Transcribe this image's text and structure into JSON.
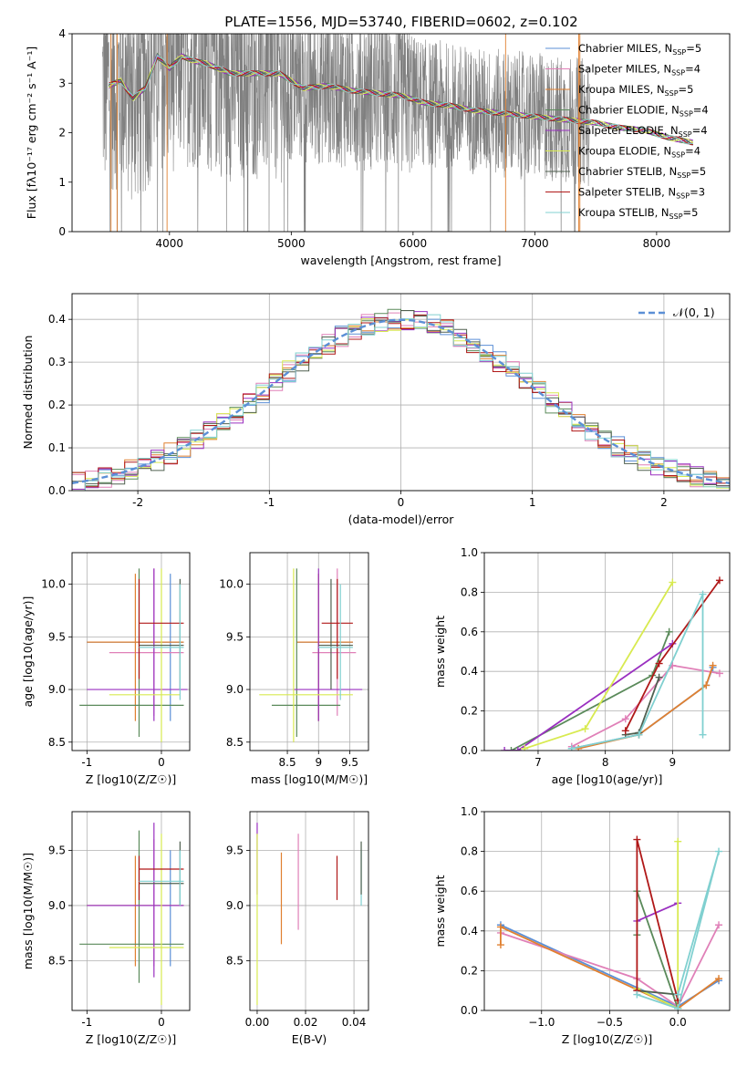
{
  "title": "PLATE=1556, MJD=53740, FIBERID=0602, z=0.102",
  "colors": {
    "Chabrier MILES": "#5b8fd6",
    "Salpeter MILES": "#e080b8",
    "Kroupa MILES": "#e08030",
    "Chabrier ELODIE": "#5a8a5a",
    "Salpeter ELODIE": "#9a30c0",
    "Kroupa ELODIE": "#d8ea50",
    "Chabrier STELIB": "#506050",
    "Salpeter STELIB": "#b01818",
    "Kroupa STELIB": "#80d0d0",
    "data": "#808080",
    "gauss": "#5b8fd6"
  },
  "chart_data": [
    {
      "id": "spectrum",
      "type": "line",
      "xlabel": "wavelength [Angstrom, rest frame]",
      "ylabel": "Flux [fλ10⁻¹⁷ erg cm⁻² s⁻¹ A⁻¹]",
      "xlim": [
        3200,
        8600
      ],
      "ylim": [
        0,
        4
      ],
      "xticks": [
        4000,
        5000,
        6000,
        7000,
        8000
      ],
      "yticks": [
        0,
        1,
        2,
        3,
        4
      ],
      "legend_position": "upper right",
      "legend": [
        {
          "label": "Chabrier MILES, N_SSP=5",
          "name": "Chabrier MILES",
          "nssp": "5"
        },
        {
          "label": "Salpeter MILES, N_SSP=4",
          "name": "Salpeter MILES",
          "nssp": "4"
        },
        {
          "label": "Kroupa MILES, N_SSP=5",
          "name": "Kroupa MILES",
          "nssp": "5"
        },
        {
          "label": "Chabrier ELODIE, N_SSP=4",
          "name": "Chabrier ELODIE",
          "nssp": "4"
        },
        {
          "label": "Salpeter ELODIE, N_SSP=4",
          "name": "Salpeter ELODIE",
          "nssp": "4"
        },
        {
          "label": "Kroupa ELODIE, N_SSP=4",
          "name": "Kroupa ELODIE",
          "nssp": "4"
        },
        {
          "label": "Chabrier STELIB, N_SSP=5",
          "name": "Chabrier STELIB",
          "nssp": "5"
        },
        {
          "label": "Salpeter STELIB, N_SSP=3",
          "name": "Salpeter STELIB",
          "nssp": "3"
        },
        {
          "label": "Kroupa STELIB, N_SSP=5",
          "name": "Kroupa STELIB",
          "nssp": "5"
        }
      ],
      "model_continuum": {
        "x": [
          3500,
          3600,
          3700,
          3800,
          3900,
          4000,
          4100,
          4200,
          4300,
          4400,
          4500,
          4700,
          4900,
          5100,
          5300,
          5500,
          5700,
          5900,
          6100,
          6300,
          6500,
          6700,
          6900,
          7100,
          7300,
          7500,
          7700,
          7900,
          8100,
          8300
        ],
        "y": [
          2.95,
          3.05,
          2.7,
          2.9,
          3.55,
          3.3,
          3.55,
          3.45,
          3.4,
          3.3,
          3.2,
          3.2,
          3.2,
          2.9,
          2.95,
          2.85,
          2.8,
          2.75,
          2.6,
          2.55,
          2.45,
          2.4,
          2.35,
          2.3,
          2.25,
          2.2,
          2.1,
          2.05,
          1.9,
          1.8
        ]
      },
      "data_range": [
        3450,
        7450
      ]
    },
    {
      "id": "residuals",
      "type": "line",
      "xlabel": "(data-model)/error",
      "ylabel": "Normed distribution",
      "xlim": [
        -2.5,
        2.5
      ],
      "ylim": [
        0,
        0.46
      ],
      "xticks": [
        -2,
        -1,
        0,
        1,
        2
      ],
      "yticks": [
        0.0,
        0.1,
        0.2,
        0.3,
        0.4
      ],
      "gauss_label": "𝒩(0, 1)",
      "legend_position": "upper right",
      "bin_width": 0.1
    },
    {
      "id": "age_vs_Z",
      "type": "scatter",
      "xlabel": "Z [log10(Z/Z☉)]",
      "ylabel": "age  [log10(age/yr)]",
      "xlim": [
        -1.2,
        0.38
      ],
      "ylim": [
        8.42,
        10.3
      ],
      "xticks": [
        -1,
        0
      ],
      "yticks": [
        8.5,
        9.0,
        9.5,
        10.0
      ],
      "points": [
        {
          "s": "Chabrier MILES",
          "x": 0.12,
          "y": 9.45,
          "xl": -1.0,
          "xh": 0.3,
          "yl": 8.7,
          "yh": 10.1
        },
        {
          "s": "Salpeter MILES",
          "x": -0.1,
          "y": 9.35,
          "xl": -0.7,
          "xh": 0.3,
          "yl": 8.75,
          "yh": 10.15
        },
        {
          "s": "Kroupa MILES",
          "x": -0.35,
          "y": 9.45,
          "xl": -1.0,
          "xh": 0.3,
          "yl": 8.7,
          "yh": 10.1
        },
        {
          "s": "Chabrier ELODIE",
          "x": -0.3,
          "y": 8.85,
          "xl": -1.1,
          "xh": 0.3,
          "yl": 8.55,
          "yh": 10.15
        },
        {
          "s": "Salpeter ELODIE",
          "x": -0.1,
          "y": 9.0,
          "xl": -1.0,
          "xh": 0.35,
          "yl": 8.7,
          "yh": 10.15
        },
        {
          "s": "Kroupa ELODIE",
          "x": 0.0,
          "y": 8.95,
          "xl": -0.7,
          "xh": 0.25,
          "yl": 8.5,
          "yh": 10.15
        },
        {
          "s": "Chabrier STELIB",
          "x": 0.25,
          "y": 9.42,
          "xl": -0.3,
          "xh": 0.3,
          "yl": 9.0,
          "yh": 10.05
        },
        {
          "s": "Salpeter STELIB",
          "x": -0.3,
          "y": 9.63,
          "xl": -0.3,
          "xh": 0.3,
          "yl": 9.1,
          "yh": 10.05
        },
        {
          "s": "Kroupa STELIB",
          "x": 0.25,
          "y": 9.4,
          "xl": -0.3,
          "xh": 0.3,
          "yl": 8.9,
          "yh": 10.0
        }
      ]
    },
    {
      "id": "age_vs_mass",
      "type": "scatter",
      "xlabel": "mass [log10(M/M☉)]",
      "ylabel": "",
      "xlim": [
        7.9,
        9.8
      ],
      "ylim": [
        8.42,
        10.3
      ],
      "xticks": [
        8.5,
        9.0,
        9.5
      ],
      "yticks": [
        8.5,
        9.0,
        9.5,
        10.0
      ],
      "points": [
        {
          "s": "Chabrier MILES",
          "x": 9.0,
          "y": 9.45,
          "xl": 8.65,
          "xh": 9.55,
          "yl": 8.7,
          "yh": 10.1
        },
        {
          "s": "Salpeter MILES",
          "x": 9.3,
          "y": 9.35,
          "xl": 8.9,
          "xh": 9.6,
          "yl": 8.75,
          "yh": 10.15
        },
        {
          "s": "Kroupa MILES",
          "x": 9.0,
          "y": 9.45,
          "xl": 8.65,
          "xh": 9.55,
          "yl": 8.7,
          "yh": 10.1
        },
        {
          "s": "Chabrier ELODIE",
          "x": 8.65,
          "y": 8.85,
          "xl": 8.25,
          "xh": 9.35,
          "yl": 8.55,
          "yh": 10.15
        },
        {
          "s": "Salpeter ELODIE",
          "x": 9.0,
          "y": 9.0,
          "xl": 8.6,
          "xh": 9.7,
          "yl": 8.7,
          "yh": 10.15
        },
        {
          "s": "Kroupa ELODIE",
          "x": 8.6,
          "y": 8.95,
          "xl": 8.05,
          "xh": 9.55,
          "yl": 8.5,
          "yh": 10.15
        },
        {
          "s": "Chabrier STELIB",
          "x": 9.2,
          "y": 9.42,
          "xl": 9.0,
          "xh": 9.55,
          "yl": 9.0,
          "yh": 10.05
        },
        {
          "s": "Salpeter STELIB",
          "x": 9.3,
          "y": 9.63,
          "xl": 9.05,
          "xh": 9.55,
          "yl": 9.1,
          "yh": 10.05
        },
        {
          "s": "Kroupa STELIB",
          "x": 9.35,
          "y": 9.4,
          "xl": 9.0,
          "xh": 9.55,
          "yl": 8.9,
          "yh": 10.0
        }
      ]
    },
    {
      "id": "weight_vs_age",
      "type": "line",
      "xlabel": "age  [log10(age/yr)]",
      "ylabel": "mass weight",
      "xlim": [
        6.2,
        9.85
      ],
      "ylim": [
        0,
        1
      ],
      "xticks": [
        7,
        8,
        9
      ],
      "yticks": [
        0.0,
        0.2,
        0.4,
        0.6,
        0.8,
        1.0
      ],
      "series": [
        {
          "s": "Chabrier MILES",
          "x": [
            7.5,
            8.5,
            9.5,
            9.6
          ],
          "y": [
            0.01,
            0.08,
            0.33,
            0.42
          ]
        },
        {
          "s": "Salpeter MILES",
          "x": [
            7.5,
            8.3,
            9.0,
            9.7
          ],
          "y": [
            0.02,
            0.16,
            0.43,
            0.39
          ]
        },
        {
          "s": "Kroupa MILES",
          "x": [
            7.6,
            8.5,
            9.5,
            9.6
          ],
          "y": [
            0.01,
            0.08,
            0.33,
            0.43
          ]
        },
        {
          "s": "Chabrier ELODIE",
          "x": [
            6.6,
            8.7,
            8.95
          ],
          "y": [
            0.0,
            0.38,
            0.6
          ]
        },
        {
          "s": "Salpeter ELODIE",
          "x": [
            6.5,
            6.7,
            9.0
          ],
          "y": [
            0.0,
            0.0,
            0.54
          ]
        },
        {
          "s": "Kroupa ELODIE",
          "x": [
            6.8,
            7.7,
            9.0
          ],
          "y": [
            0.01,
            0.11,
            0.85
          ]
        },
        {
          "s": "Chabrier STELIB",
          "x": [
            8.3,
            8.5,
            8.8
          ],
          "y": [
            0.08,
            0.09,
            0.37
          ]
        },
        {
          "s": "Salpeter STELIB",
          "x": [
            8.3,
            8.8,
            9.7
          ],
          "y": [
            0.1,
            0.44,
            0.86
          ]
        },
        {
          "s": "Kroupa STELIB",
          "x": [
            7.5,
            8.5,
            9.45,
            9.45
          ],
          "y": [
            0.01,
            0.08,
            0.79,
            0.08
          ]
        }
      ]
    },
    {
      "id": "mass_vs_Z",
      "type": "scatter",
      "xlabel": "Z [log10(Z/Z☉)]",
      "ylabel": "mass [log10(M/M☉)]",
      "xlim": [
        -1.2,
        0.38
      ],
      "ylim": [
        8.05,
        9.85
      ],
      "xticks": [
        -1,
        0
      ],
      "yticks": [
        8.5,
        9.0,
        9.5
      ],
      "points": [
        {
          "s": "Chabrier MILES",
          "x": 0.12,
          "y": 9.0,
          "xl": -1.0,
          "xh": 0.3,
          "yl": 8.45,
          "yh": 9.5
        },
        {
          "s": "Salpeter MILES",
          "x": -0.1,
          "y": 9.0,
          "xl": -1.0,
          "xh": 0.3,
          "yl": 8.45,
          "yh": 9.6
        },
        {
          "s": "Kroupa MILES",
          "x": -0.35,
          "y": 9.0,
          "xl": -1.0,
          "xh": 0.3,
          "yl": 8.45,
          "yh": 9.45
        },
        {
          "s": "Chabrier ELODIE",
          "x": -0.3,
          "y": 8.65,
          "xl": -1.1,
          "xh": 0.3,
          "yl": 8.3,
          "yh": 9.68
        },
        {
          "s": "Salpeter ELODIE",
          "x": -0.1,
          "y": 9.0,
          "xl": -1.0,
          "xh": 0.3,
          "yl": 8.35,
          "yh": 9.75
        },
        {
          "s": "Kroupa ELODIE",
          "x": 0.0,
          "y": 8.62,
          "xl": -0.7,
          "xh": 0.3,
          "yl": 8.1,
          "yh": 9.65
        },
        {
          "s": "Chabrier STELIB",
          "x": 0.25,
          "y": 9.2,
          "xl": -0.3,
          "xh": 0.3,
          "yl": 9.0,
          "yh": 9.58
        },
        {
          "s": "Salpeter STELIB",
          "x": -0.3,
          "y": 9.33,
          "xl": -0.3,
          "xh": 0.3,
          "yl": 9.05,
          "yh": 9.45
        },
        {
          "s": "Kroupa STELIB",
          "x": 0.25,
          "y": 9.22,
          "xl": -0.3,
          "xh": 0.3,
          "yl": 9.0,
          "yh": 9.5
        }
      ]
    },
    {
      "id": "mass_vs_ebv",
      "type": "scatter",
      "xlabel": "E(B-V)",
      "ylabel": "",
      "xlim": [
        -0.003,
        0.046
      ],
      "ylim": [
        8.05,
        9.85
      ],
      "xticks": [
        0.0,
        0.02,
        0.04
      ],
      "ytick_values": [
        8.5,
        9.0,
        9.5
      ],
      "points": [
        {
          "s": "Salpeter ELODIE",
          "x": 0.0,
          "yl": 9.1,
          "yh": 9.75
        },
        {
          "s": "Kroupa ELODIE",
          "x": 0.0,
          "yl": 8.1,
          "yh": 9.65
        },
        {
          "s": "Kroupa MILES",
          "x": 0.01,
          "yl": 8.65,
          "yh": 9.48
        },
        {
          "s": "Salpeter MILES",
          "x": 0.017,
          "yl": 8.78,
          "yh": 9.65
        },
        {
          "s": "Salpeter STELIB",
          "x": 0.033,
          "yl": 9.05,
          "yh": 9.45
        },
        {
          "s": "Kroupa STELIB",
          "x": 0.043,
          "yl": 9.0,
          "yh": 9.5
        },
        {
          "s": "Chabrier STELIB",
          "x": 0.043,
          "yl": 9.1,
          "yh": 9.58
        }
      ]
    },
    {
      "id": "weight_vs_Z",
      "type": "line",
      "xlabel": "Z [log10(Z/Z☉)]",
      "ylabel": "mass weight",
      "xlim": [
        -1.42,
        0.38
      ],
      "ylim": [
        0,
        1
      ],
      "xticks": [
        -1.0,
        -0.5,
        0.0
      ],
      "yticks": [
        0.0,
        0.2,
        0.4,
        0.6,
        0.8,
        1.0
      ],
      "series": [
        {
          "s": "Chabrier MILES",
          "x": [
            -1.3,
            0.0,
            0.3
          ],
          "y": [
            0.43,
            0.02,
            0.15
          ]
        },
        {
          "s": "Salpeter MILES",
          "x": [
            -1.3,
            -0.3,
            0.0,
            0.3
          ],
          "y": [
            0.39,
            0.16,
            0.02,
            0.43
          ]
        },
        {
          "s": "Kroupa MILES",
          "x": [
            -1.3,
            -1.3,
            0.0,
            0.3
          ],
          "y": [
            0.33,
            0.42,
            0.01,
            0.16
          ]
        },
        {
          "s": "Chabrier ELODIE",
          "x": [
            -0.3,
            -0.3,
            0.0
          ],
          "y": [
            0.38,
            0.6,
            0.01
          ]
        },
        {
          "s": "Salpeter ELODIE",
          "x": [
            -0.3,
            0.0
          ],
          "y": [
            0.45,
            0.54
          ]
        },
        {
          "s": "Kroupa ELODIE",
          "x": [
            -0.3,
            0.0,
            0.0
          ],
          "y": [
            0.11,
            0.01,
            0.85
          ]
        },
        {
          "s": "Chabrier STELIB",
          "x": [
            -0.3,
            0.0
          ],
          "y": [
            0.1,
            0.08
          ]
        },
        {
          "s": "Salpeter STELIB",
          "x": [
            -0.3,
            -0.3,
            0.0
          ],
          "y": [
            0.1,
            0.86,
            0.05
          ]
        },
        {
          "s": "Kroupa STELIB",
          "x": [
            -0.3,
            0.0,
            0.3,
            0.0
          ],
          "y": [
            0.08,
            0.01,
            0.8,
            0.08
          ]
        }
      ]
    }
  ]
}
